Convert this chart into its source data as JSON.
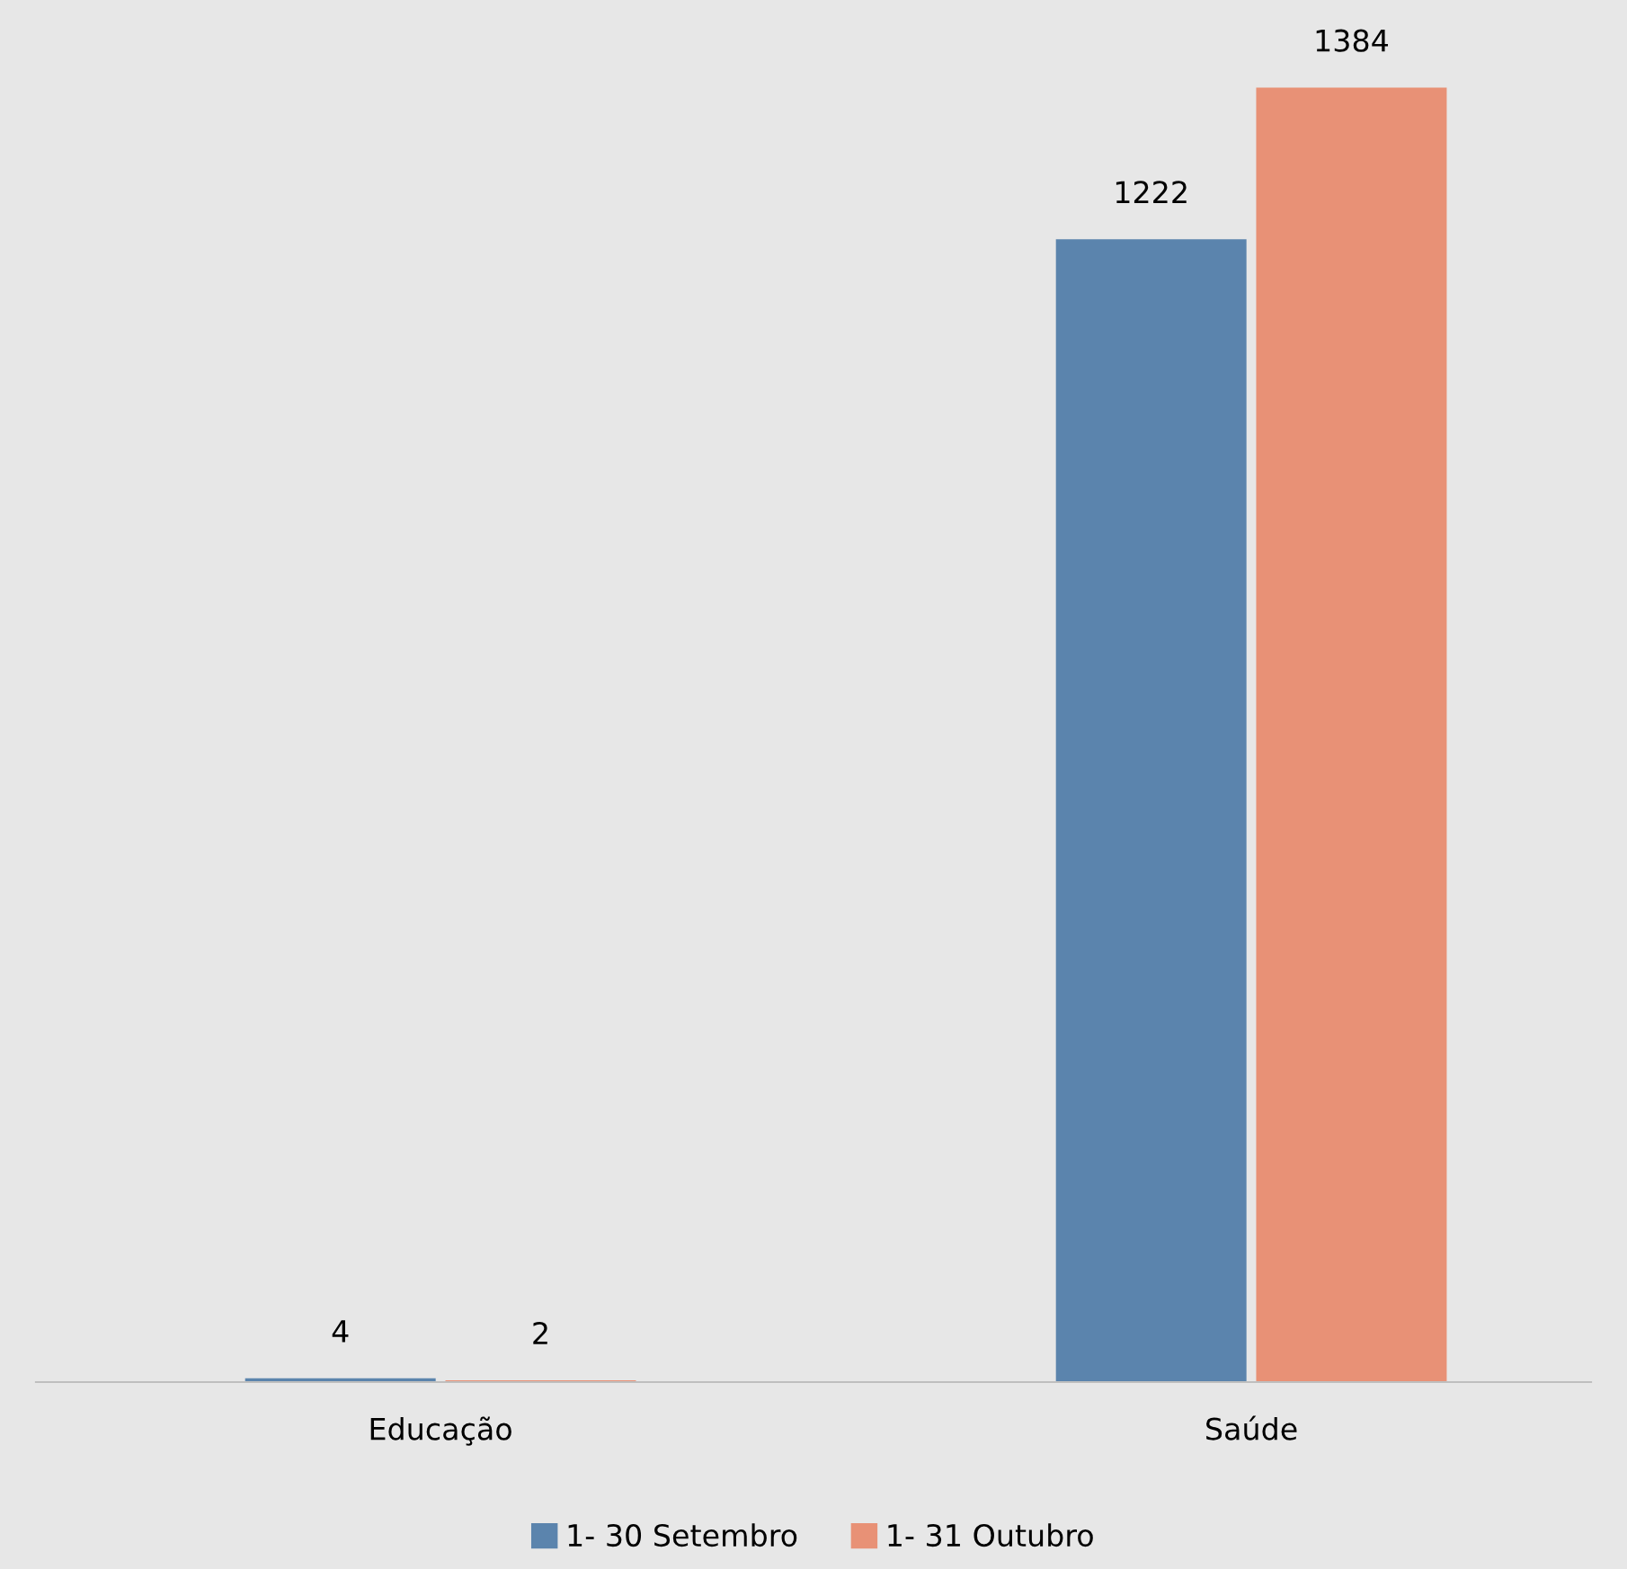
{
  "chart_data": {
    "type": "bar",
    "categories": [
      "Educação",
      "Saúde"
    ],
    "series": [
      {
        "name": "1- 30 Setembro",
        "color": "#5b84ad",
        "values": [
          4,
          1222
        ]
      },
      {
        "name": "1- 31 Outubro",
        "color": "#e89176",
        "values": [
          2,
          1384
        ]
      }
    ],
    "data_labels": true,
    "legend": "bottom",
    "grid": false
  }
}
